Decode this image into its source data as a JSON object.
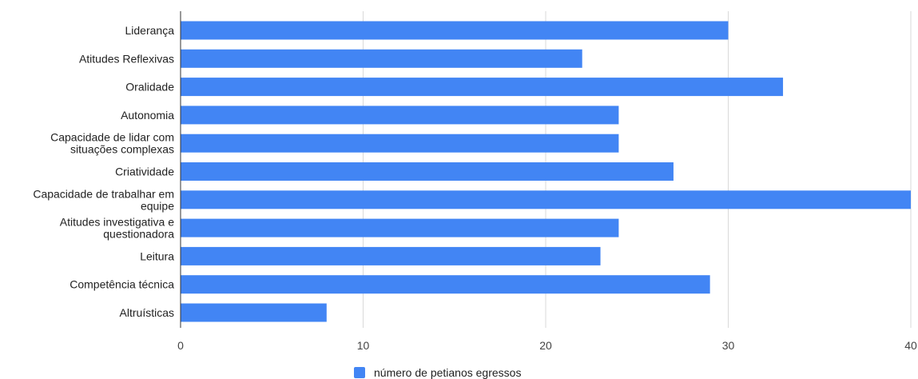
{
  "chart_data": {
    "type": "bar",
    "orientation": "horizontal",
    "categories": [
      [
        "Liderança"
      ],
      [
        "Atitudes Reflexivas"
      ],
      [
        "Oralidade"
      ],
      [
        "Autonomia"
      ],
      [
        "Capacidade de lidar com",
        "situações complexas"
      ],
      [
        "Criatividade"
      ],
      [
        "Capacidade de trabalhar em",
        "equipe"
      ],
      [
        "Atitudes investigativa e",
        "questionadora"
      ],
      [
        "Leitura"
      ],
      [
        "Competência técnica"
      ],
      [
        "Altruísticas"
      ]
    ],
    "series": [
      {
        "name": "número de petianos egressos",
        "values": [
          30,
          22,
          33,
          24,
          24,
          27,
          40,
          24,
          23,
          29,
          8
        ],
        "color": "#4285f4"
      }
    ],
    "xlim": [
      0,
      40
    ],
    "xticks": [
      "0",
      "10",
      "20",
      "30",
      "40"
    ],
    "grid": true,
    "legend_position": "bottom"
  }
}
